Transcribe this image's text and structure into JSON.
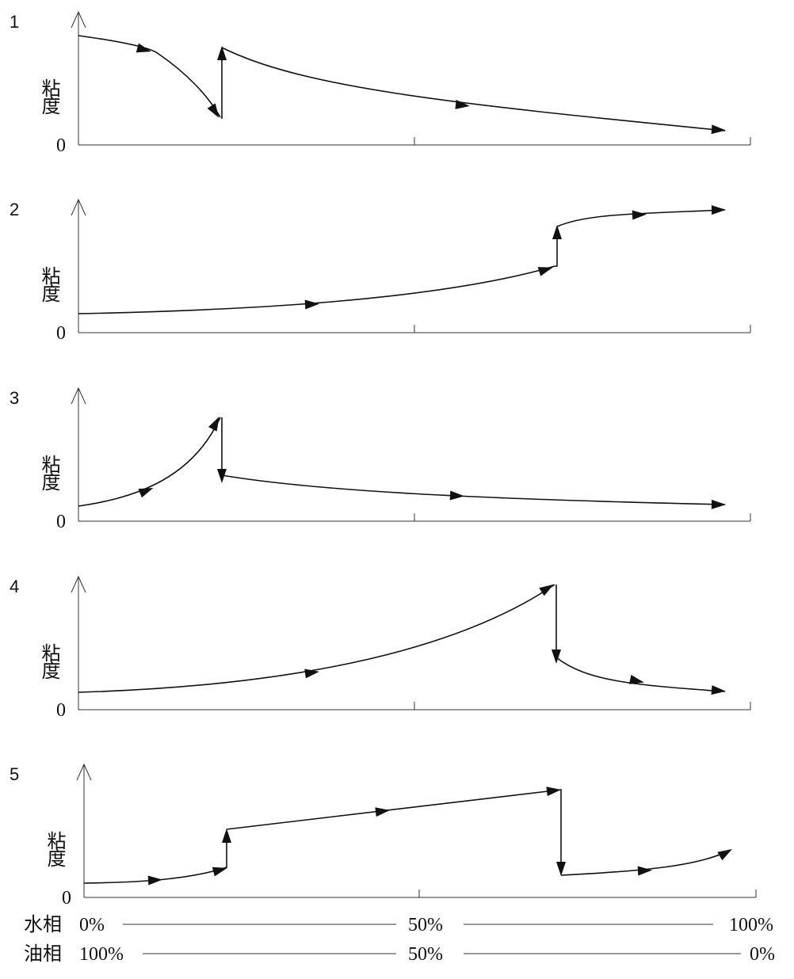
{
  "panels": [
    {
      "number": "1",
      "y_label": "粘度",
      "origin": "0"
    },
    {
      "number": "2",
      "y_label": "粘度",
      "origin": "0"
    },
    {
      "number": "3",
      "y_label": "粘度",
      "origin": "0"
    },
    {
      "number": "4",
      "y_label": "粘度",
      "origin": "0"
    },
    {
      "number": "5",
      "y_label": "粘度",
      "origin": "0"
    }
  ],
  "x_axis": {
    "rows": [
      {
        "name": "水相",
        "start": "0%",
        "mid": "50%",
        "end": "100%"
      },
      {
        "name": "油相",
        "start": "100%",
        "mid": "50%",
        "end": "0%"
      }
    ]
  }
}
